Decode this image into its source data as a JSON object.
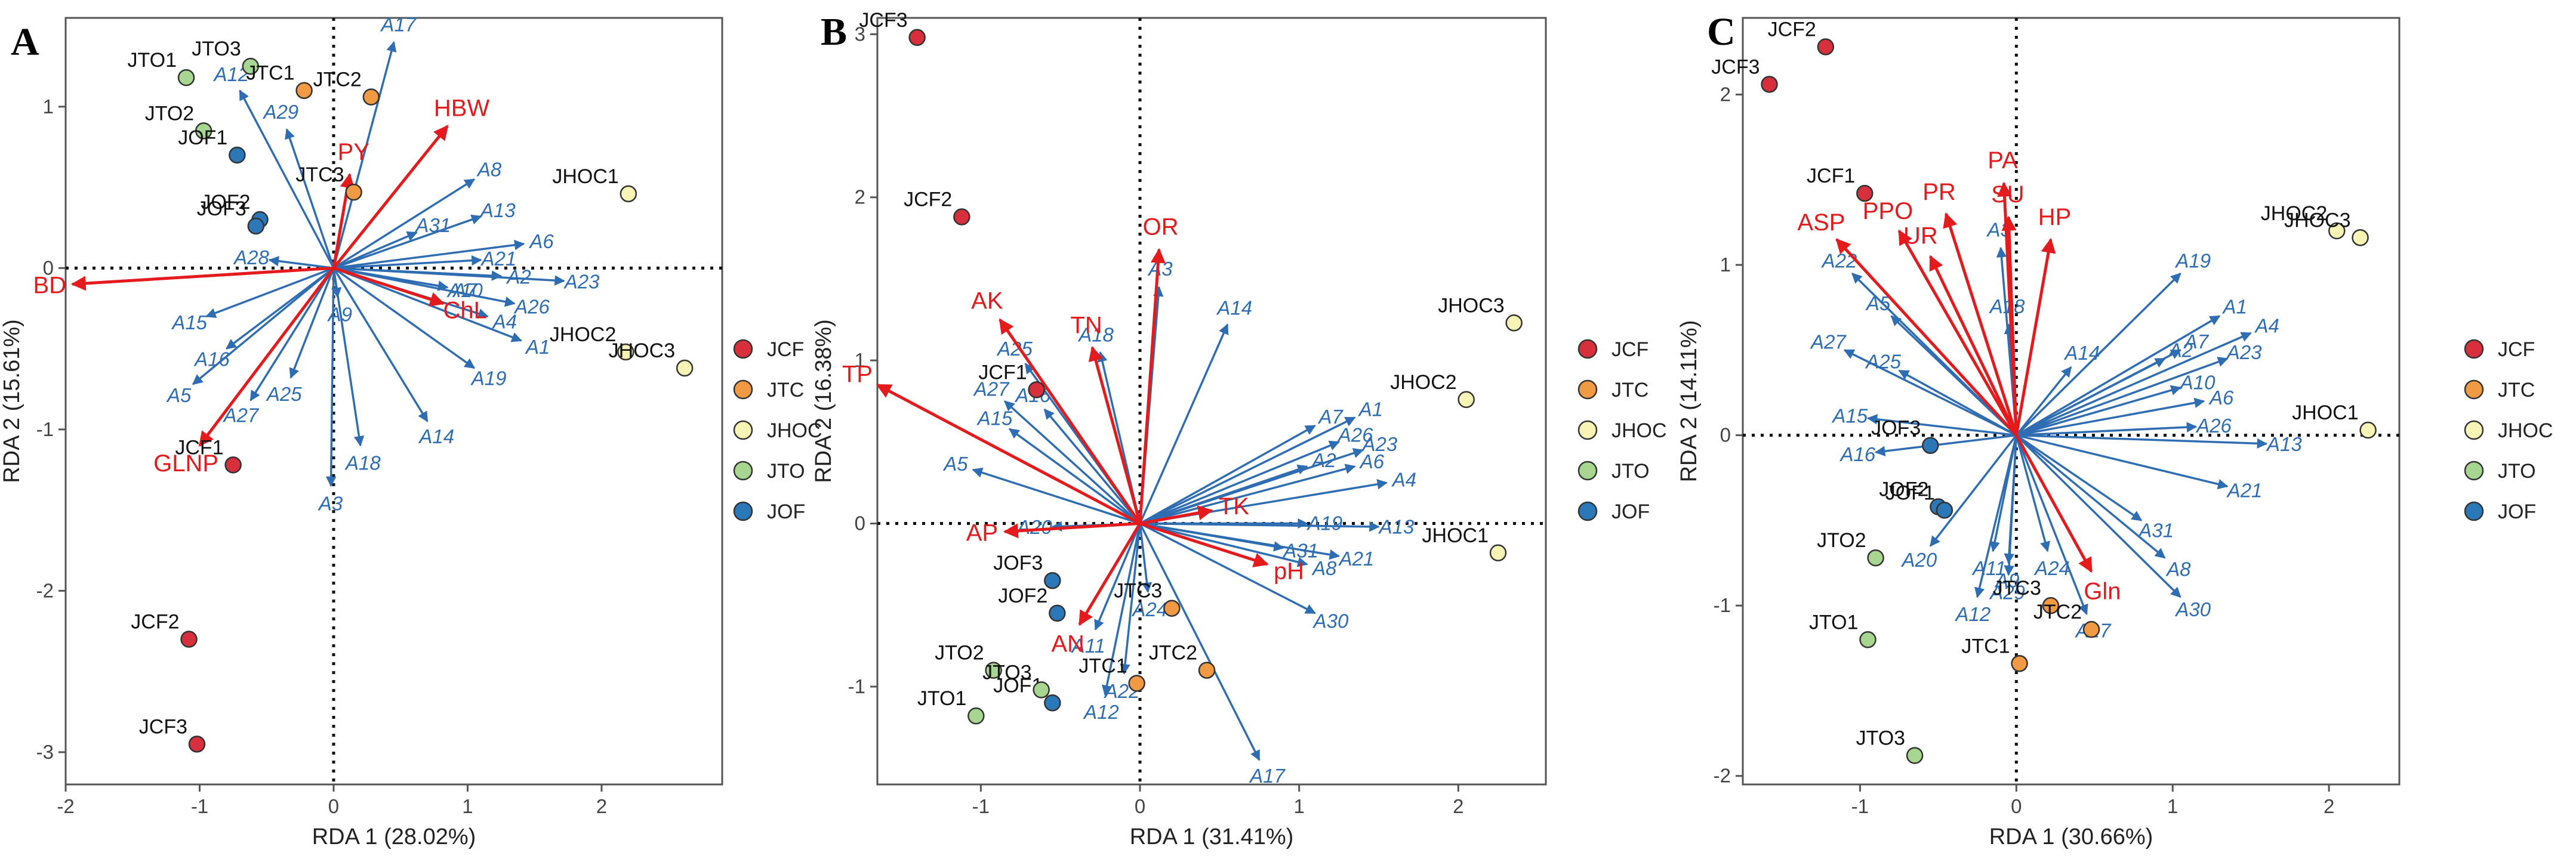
{
  "colors": {
    "JCF": "#d7303c",
    "JTC": "#f09a44",
    "JHOC": "#f7f4b6",
    "JTO": "#a6d690",
    "JOF": "#2a78b8",
    "species_arrow": "#2f6db3",
    "env_arrow": "#e41a1c"
  },
  "legend": [
    "JCF",
    "JTC",
    "JHOC",
    "JTO",
    "JOF"
  ],
  "chart_data": [
    {
      "type": "scatter",
      "panel": "A",
      "xlabel": "RDA 1 (28.02%)",
      "ylabel": "RDA 2 (15.61%)",
      "xlim": [
        -2,
        2.9
      ],
      "ylim": [
        -3.2,
        1.55
      ],
      "xticks": [
        -2,
        -1,
        0,
        1,
        2
      ],
      "yticks": [
        -3,
        -2,
        -1,
        0,
        1
      ],
      "sites": [
        {
          "label": "JTO3",
          "group": "JTO",
          "x": -0.62,
          "y": 1.25
        },
        {
          "label": "JTO1",
          "group": "JTO",
          "x": -1.1,
          "y": 1.18
        },
        {
          "label": "JTC1",
          "group": "JTC",
          "x": -0.22,
          "y": 1.1
        },
        {
          "label": "JTC2",
          "group": "JTC",
          "x": 0.28,
          "y": 1.06
        },
        {
          "label": "JTO2",
          "group": "JTO",
          "x": -0.97,
          "y": 0.85
        },
        {
          "label": "JOF1",
          "group": "JOF",
          "x": -0.72,
          "y": 0.7
        },
        {
          "label": "JTC3",
          "group": "JTC",
          "x": 0.15,
          "y": 0.47
        },
        {
          "label": "JOF2",
          "group": "JOF",
          "x": -0.55,
          "y": 0.3
        },
        {
          "label": "JOF3",
          "group": "JOF",
          "x": -0.58,
          "y": 0.26
        },
        {
          "label": "JHOC1",
          "group": "JHOC",
          "x": 2.2,
          "y": 0.46
        },
        {
          "label": "JHOC2",
          "group": "JHOC",
          "x": 2.18,
          "y": -0.52
        },
        {
          "label": "JHOC3",
          "group": "JHOC",
          "x": 2.62,
          "y": -0.62
        },
        {
          "label": "JCF1",
          "group": "JCF",
          "x": -0.75,
          "y": -1.22
        },
        {
          "label": "JCF2",
          "group": "JCF",
          "x": -1.08,
          "y": -2.3
        },
        {
          "label": "JCF3",
          "group": "JCF",
          "x": -1.02,
          "y": -2.95
        }
      ],
      "species": [
        {
          "label": "A1",
          "x": 1.4,
          "y": -0.45
        },
        {
          "label": "A2",
          "x": 1.25,
          "y": -0.05
        },
        {
          "label": "A3",
          "x": -0.02,
          "y": -1.35
        },
        {
          "label": "A4",
          "x": 1.15,
          "y": -0.3
        },
        {
          "label": "A5",
          "x": -1.05,
          "y": -0.72
        },
        {
          "label": "A6",
          "x": 1.42,
          "y": 0.15
        },
        {
          "label": "A7",
          "x": 0.85,
          "y": -0.12
        },
        {
          "label": "A8",
          "x": 1.05,
          "y": 0.55
        },
        {
          "label": "A9",
          "x": 0.03,
          "y": -0.18
        },
        {
          "label": "A10",
          "x": 0.85,
          "y": -0.12
        },
        {
          "label": "A12",
          "x": -0.7,
          "y": 1.1
        },
        {
          "label": "A13",
          "x": 1.1,
          "y": 0.32
        },
        {
          "label": "A14",
          "x": 0.7,
          "y": -0.95
        },
        {
          "label": "A15",
          "x": -0.95,
          "y": -0.3
        },
        {
          "label": "A16",
          "x": -0.8,
          "y": -0.5
        },
        {
          "label": "A17",
          "x": 0.45,
          "y": 1.4
        },
        {
          "label": "A18",
          "x": 0.2,
          "y": -1.1
        },
        {
          "label": "A19",
          "x": 1.05,
          "y": -0.62
        },
        {
          "label": "A21",
          "x": 1.1,
          "y": 0.05
        },
        {
          "label": "A23",
          "x": 1.72,
          "y": -0.08
        },
        {
          "label": "A25",
          "x": -0.32,
          "y": -0.68
        },
        {
          "label": "A26",
          "x": 1.35,
          "y": -0.22
        },
        {
          "label": "A27",
          "x": -0.62,
          "y": -0.82
        },
        {
          "label": "A28",
          "x": -0.48,
          "y": 0.05
        },
        {
          "label": "A29",
          "x": -0.35,
          "y": 0.86
        },
        {
          "label": "A31",
          "x": 0.62,
          "y": 0.22
        }
      ],
      "env": [
        {
          "label": "BD",
          "x": -1.95,
          "y": -0.1
        },
        {
          "label": "HBW",
          "x": 0.85,
          "y": 0.88
        },
        {
          "label": "ChL",
          "x": 0.82,
          "y": -0.22
        },
        {
          "label": "PY",
          "x": 0.12,
          "y": 0.58
        },
        {
          "label": "GLNP",
          "x": -1.0,
          "y": -1.1
        }
      ]
    },
    {
      "type": "scatter",
      "panel": "B",
      "xlabel": "RDA 1 (31.41%)",
      "ylabel": "RDA 2 (16.38%)",
      "xlim": [
        -1.65,
        2.55
      ],
      "ylim": [
        -1.6,
        3.1
      ],
      "xticks": [
        -1,
        0,
        1,
        2
      ],
      "yticks": [
        -1,
        0,
        1,
        2,
        3
      ],
      "sites": [
        {
          "label": "JCF3",
          "group": "JCF",
          "x": -1.4,
          "y": 2.98
        },
        {
          "label": "JCF2",
          "group": "JCF",
          "x": -1.12,
          "y": 1.88
        },
        {
          "label": "JCF1",
          "group": "JCF",
          "x": -0.65,
          "y": 0.82
        },
        {
          "label": "JHOC3",
          "group": "JHOC",
          "x": 2.35,
          "y": 1.23
        },
        {
          "label": "JHOC2",
          "group": "JHOC",
          "x": 2.05,
          "y": 0.76
        },
        {
          "label": "JHOC1",
          "group": "JHOC",
          "x": 2.25,
          "y": -0.18
        },
        {
          "label": "JOF3",
          "group": "JOF",
          "x": -0.55,
          "y": -0.35
        },
        {
          "label": "JOF2",
          "group": "JOF",
          "x": -0.52,
          "y": -0.55
        },
        {
          "label": "JOF1",
          "group": "JOF",
          "x": -0.55,
          "y": -1.1
        },
        {
          "label": "JTC3",
          "group": "JTC",
          "x": 0.2,
          "y": -0.52
        },
        {
          "label": "JTC1",
          "group": "JTC",
          "x": -0.02,
          "y": -0.98
        },
        {
          "label": "JTC2",
          "group": "JTC",
          "x": 0.42,
          "y": -0.9
        },
        {
          "label": "JTO2",
          "group": "JTO",
          "x": -0.92,
          "y": -0.9
        },
        {
          "label": "JTO3",
          "group": "JTO",
          "x": -0.62,
          "y": -1.02
        },
        {
          "label": "JTO1",
          "group": "JTO",
          "x": -1.03,
          "y": -1.18
        }
      ],
      "species": [
        {
          "label": "A1",
          "x": 1.35,
          "y": 0.65
        },
        {
          "label": "A2",
          "x": 1.05,
          "y": 0.35
        },
        {
          "label": "A3",
          "x": 0.12,
          "y": 1.45
        },
        {
          "label": "A4",
          "x": 1.55,
          "y": 0.25
        },
        {
          "label": "A5",
          "x": -1.05,
          "y": 0.33
        },
        {
          "label": "A6",
          "x": 1.35,
          "y": 0.35
        },
        {
          "label": "A7",
          "x": 1.1,
          "y": 0.6
        },
        {
          "label": "A8",
          "x": 1.05,
          "y": -0.25
        },
        {
          "label": "A11",
          "x": -0.28,
          "y": -0.65
        },
        {
          "label": "A12",
          "x": -0.22,
          "y": -1.05
        },
        {
          "label": "A13",
          "x": 1.5,
          "y": -0.02
        },
        {
          "label": "A14",
          "x": 0.55,
          "y": 1.22
        },
        {
          "label": "A15",
          "x": -0.82,
          "y": 0.58
        },
        {
          "label": "A16",
          "x": -0.6,
          "y": 0.7
        },
        {
          "label": "A17",
          "x": 0.75,
          "y": -1.45
        },
        {
          "label": "A18",
          "x": -0.25,
          "y": 1.05
        },
        {
          "label": "A19",
          "x": 1.05,
          "y": 0.0
        },
        {
          "label": "A20",
          "x": -0.55,
          "y": -0.02
        },
        {
          "label": "A21",
          "x": 1.25,
          "y": -0.2
        },
        {
          "label": "A22",
          "x": -0.1,
          "y": -0.92
        },
        {
          "label": "A23",
          "x": 1.4,
          "y": 0.45
        },
        {
          "label": "A24",
          "x": 0.05,
          "y": -0.42
        },
        {
          "label": "A25",
          "x": -0.72,
          "y": 0.98
        },
        {
          "label": "A26",
          "x": 1.25,
          "y": 0.5
        },
        {
          "label": "A27",
          "x": -0.85,
          "y": 0.75
        },
        {
          "label": "A30",
          "x": 1.1,
          "y": -0.55
        },
        {
          "label": "A31",
          "x": 0.9,
          "y": -0.15
        }
      ],
      "env": [
        {
          "label": "OR",
          "x": 0.12,
          "y": 1.68
        },
        {
          "label": "TN",
          "x": -0.3,
          "y": 1.08
        },
        {
          "label": "AK",
          "x": -0.88,
          "y": 1.25
        },
        {
          "label": "TP",
          "x": -1.65,
          "y": 0.85
        },
        {
          "label": "AP",
          "x": -0.85,
          "y": -0.05
        },
        {
          "label": "AN",
          "x": -0.38,
          "y": -0.62
        },
        {
          "label": "TK",
          "x": 0.45,
          "y": 0.08
        },
        {
          "label": "pH",
          "x": 0.8,
          "y": -0.25
        }
      ]
    },
    {
      "type": "scatter",
      "panel": "C",
      "xlabel": "RDA 1 (30.66%)",
      "ylabel": "RDA 2 (14.11%)",
      "xlim": [
        -1.75,
        2.45
      ],
      "ylim": [
        -2.05,
        2.45
      ],
      "xticks": [
        -1,
        0,
        1,
        2
      ],
      "yticks": [
        -2,
        -1,
        0,
        1,
        2
      ],
      "sites": [
        {
          "label": "JCF2",
          "group": "JCF",
          "x": -1.22,
          "y": 2.28
        },
        {
          "label": "JCF3",
          "group": "JCF",
          "x": -1.58,
          "y": 2.06
        },
        {
          "label": "JCF1",
          "group": "JCF",
          "x": -0.97,
          "y": 1.42
        },
        {
          "label": "JHOC2",
          "group": "JHOC",
          "x": 2.05,
          "y": 1.2
        },
        {
          "label": "JHOC3",
          "group": "JHOC",
          "x": 2.2,
          "y": 1.16
        },
        {
          "label": "JHOC1",
          "group": "JHOC",
          "x": 2.25,
          "y": 0.03
        },
        {
          "label": "JOF3",
          "group": "JOF",
          "x": -0.55,
          "y": -0.06
        },
        {
          "label": "JOF2",
          "group": "JOF",
          "x": -0.5,
          "y": -0.42
        },
        {
          "label": "JOF1",
          "group": "JOF",
          "x": -0.46,
          "y": -0.44
        },
        {
          "label": "JTO2",
          "group": "JTO",
          "x": -0.9,
          "y": -0.72
        },
        {
          "label": "JTO1",
          "group": "JTO",
          "x": -0.95,
          "y": -1.2
        },
        {
          "label": "JTO3",
          "group": "JTO",
          "x": -0.65,
          "y": -1.88
        },
        {
          "label": "JTC3",
          "group": "JTC",
          "x": 0.22,
          "y": -1.0
        },
        {
          "label": "JTC2",
          "group": "JTC",
          "x": 0.48,
          "y": -1.14
        },
        {
          "label": "JTC1",
          "group": "JTC",
          "x": 0.02,
          "y": -1.34
        }
      ],
      "species": [
        {
          "label": "A1",
          "x": 1.3,
          "y": 0.7
        },
        {
          "label": "A2",
          "x": 0.95,
          "y": 0.45
        },
        {
          "label": "A4",
          "x": 1.5,
          "y": 0.6
        },
        {
          "label": "A5",
          "x": -0.8,
          "y": 0.7
        },
        {
          "label": "A6",
          "x": 1.2,
          "y": 0.2
        },
        {
          "label": "A7",
          "x": 1.05,
          "y": 0.5
        },
        {
          "label": "A8",
          "x": 0.95,
          "y": -0.72
        },
        {
          "label": "A9",
          "x": -0.05,
          "y": -0.75
        },
        {
          "label": "A10",
          "x": 1.05,
          "y": 0.28
        },
        {
          "label": "A11",
          "x": -0.15,
          "y": -0.68
        },
        {
          "label": "A12",
          "x": -0.25,
          "y": -0.95
        },
        {
          "label": "A13",
          "x": 1.6,
          "y": -0.05
        },
        {
          "label": "A14",
          "x": 0.35,
          "y": 0.4
        },
        {
          "label": "A15",
          "x": -0.95,
          "y": 0.1
        },
        {
          "label": "A16",
          "x": -0.9,
          "y": -0.1
        },
        {
          "label": "A17",
          "x": 0.45,
          "y": -1.05
        },
        {
          "label": "A18",
          "x": -0.05,
          "y": 0.65
        },
        {
          "label": "A19",
          "x": 1.05,
          "y": 0.95
        },
        {
          "label": "A20",
          "x": -0.55,
          "y": -0.65
        },
        {
          "label": "A21",
          "x": 1.35,
          "y": -0.3
        },
        {
          "label": "A22",
          "x": -1.05,
          "y": 0.95
        },
        {
          "label": "A23",
          "x": 1.35,
          "y": 0.45
        },
        {
          "label": "A24",
          "x": 0.2,
          "y": -0.68
        },
        {
          "label": "A25",
          "x": -0.75,
          "y": 0.38
        },
        {
          "label": "A26",
          "x": 1.15,
          "y": 0.05
        },
        {
          "label": "A27",
          "x": -1.1,
          "y": 0.5
        },
        {
          "label": "A29",
          "x": -0.05,
          "y": -0.82
        },
        {
          "label": "A30",
          "x": 1.05,
          "y": -0.95
        },
        {
          "label": "A31",
          "x": 0.8,
          "y": -0.5
        },
        {
          "label": "A3",
          "x": -0.1,
          "y": 1.1
        }
      ],
      "env": [
        {
          "label": "ASP",
          "x": -1.15,
          "y": 1.15
        },
        {
          "label": "PPO",
          "x": -0.75,
          "y": 1.2
        },
        {
          "label": "PR",
          "x": -0.45,
          "y": 1.3
        },
        {
          "label": "UR",
          "x": -0.55,
          "y": 1.05
        },
        {
          "label": "PA",
          "x": -0.08,
          "y": 1.48
        },
        {
          "label": "SU",
          "x": -0.05,
          "y": 1.28
        },
        {
          "label": "HP",
          "x": 0.22,
          "y": 1.15
        },
        {
          "label": "Gln",
          "x": 0.48,
          "y": -0.8
        }
      ]
    }
  ]
}
